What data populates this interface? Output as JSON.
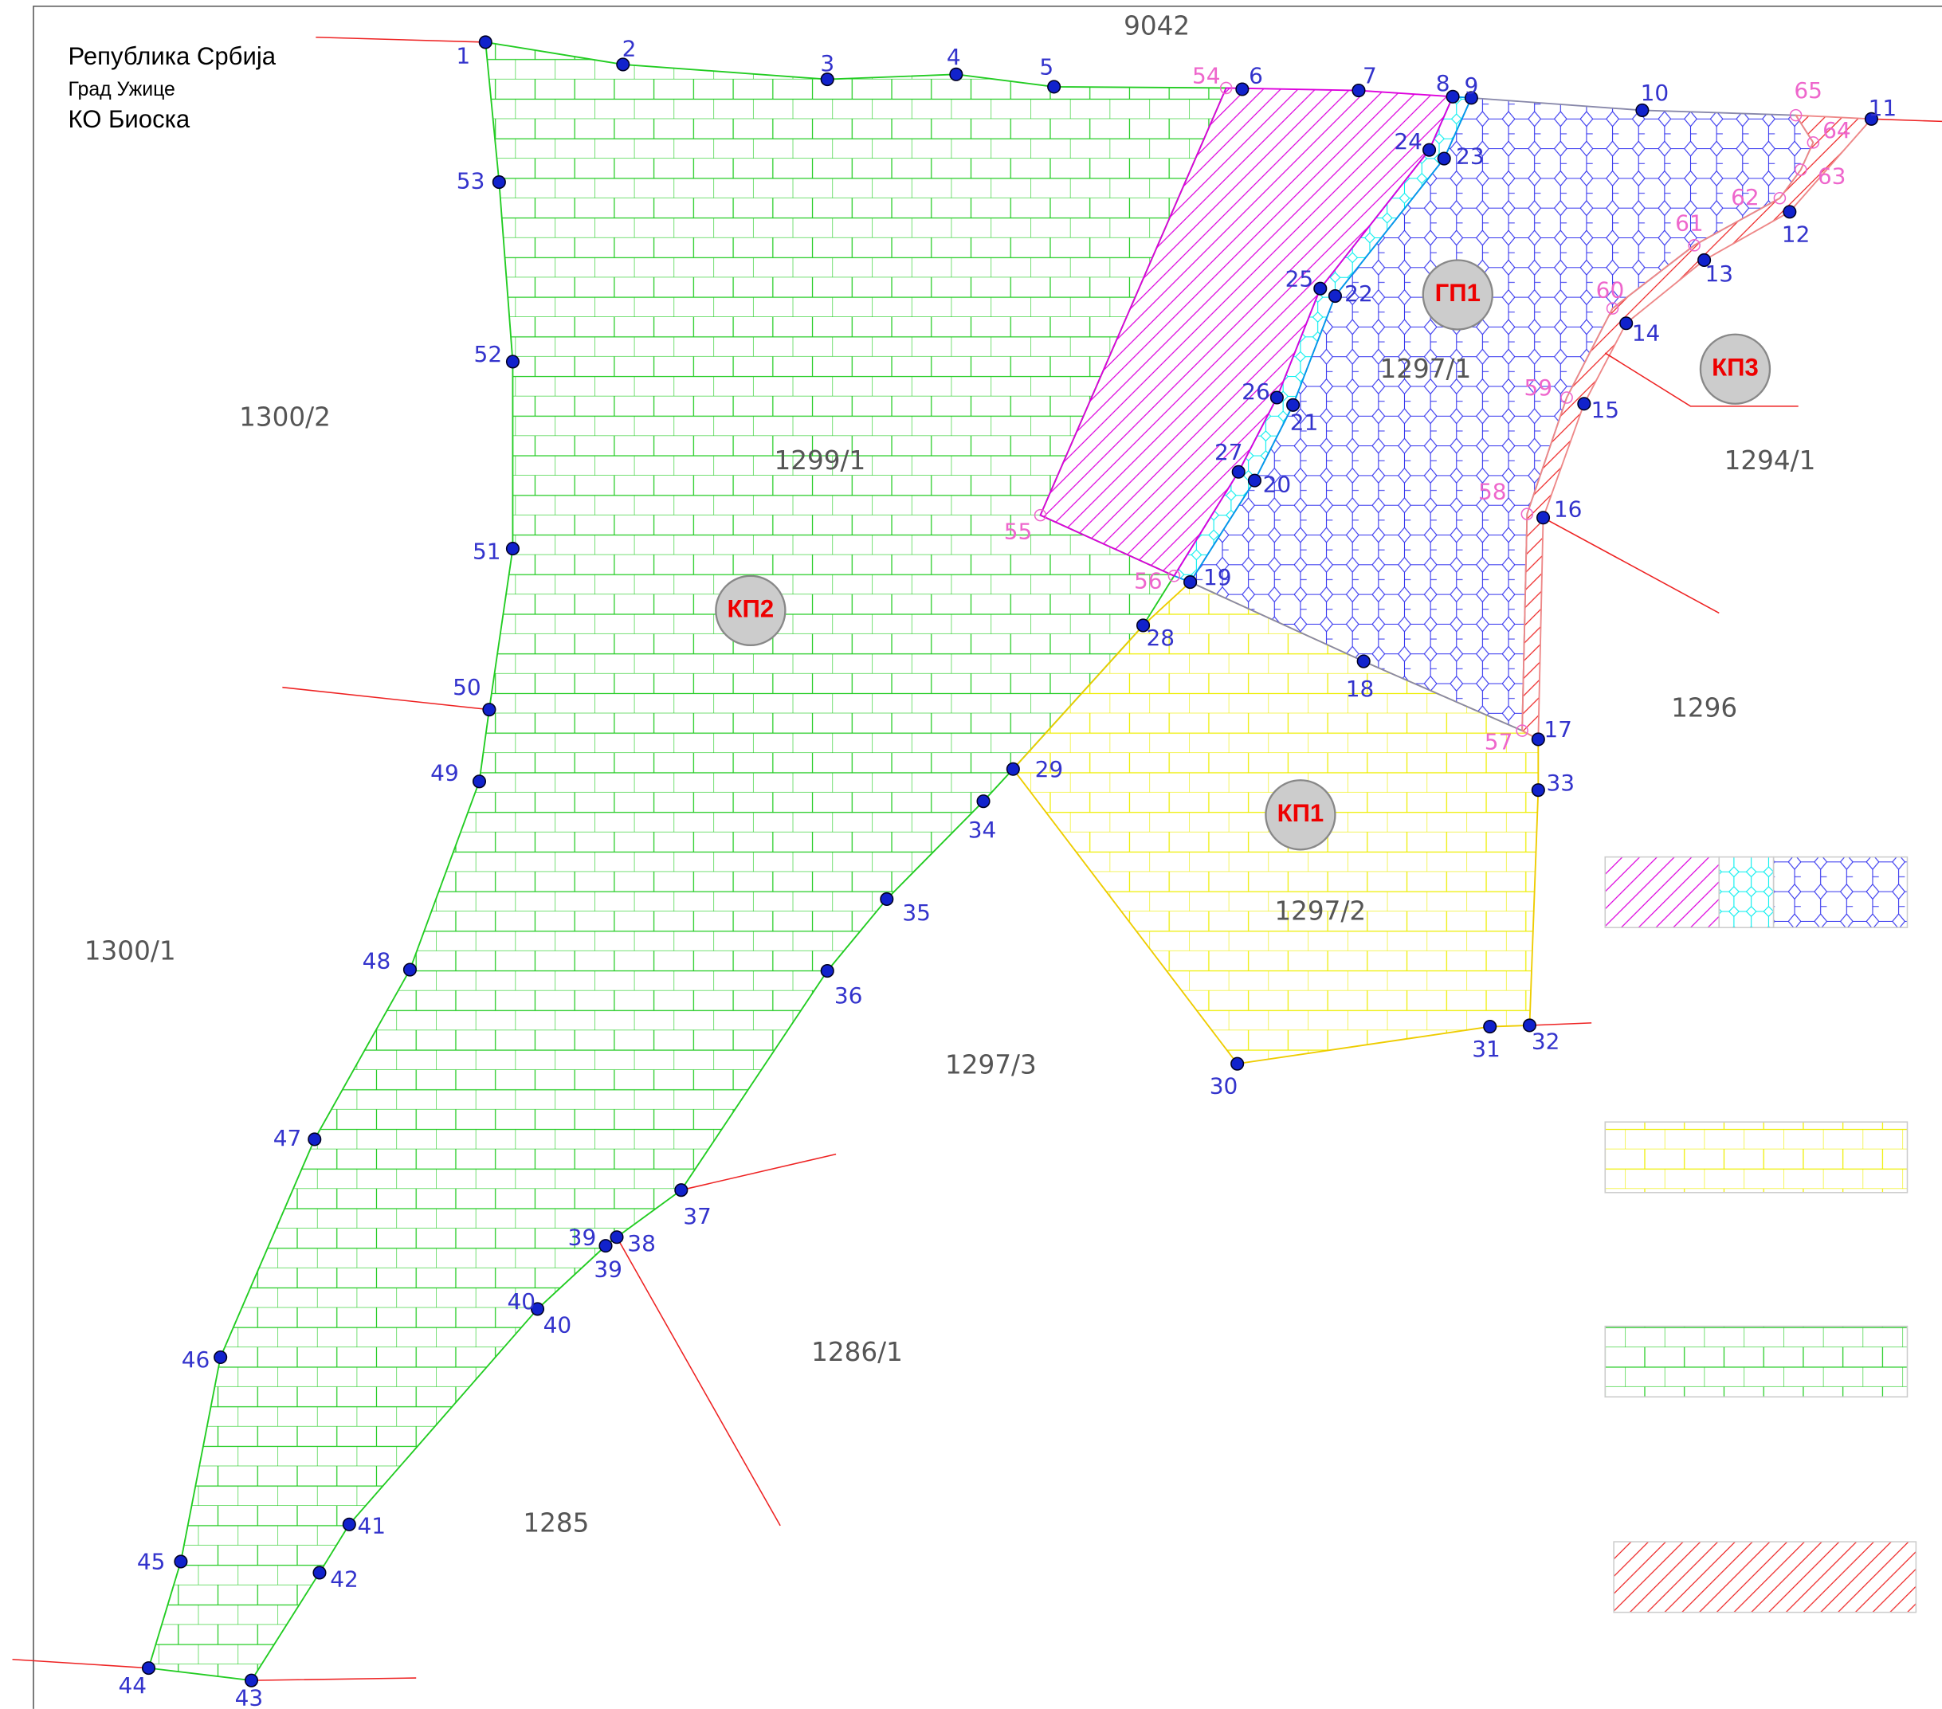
{
  "header": {
    "country": "Република Србија",
    "city": "Град Ужице",
    "cadastral_municipality": "КО Биоска"
  },
  "parcels": [
    "9042",
    "1300/2",
    "1299/1",
    "1297/1",
    "1294/1",
    "1296",
    "1300/1",
    "1297/2",
    "1297/3",
    "1286/1",
    "1285"
  ],
  "zones": [
    "КП1",
    "КП2",
    "КП3",
    "ГП1"
  ],
  "points": [
    "1",
    "2",
    "3",
    "4",
    "5",
    "6",
    "7",
    "8",
    "9",
    "10",
    "11",
    "12",
    "13",
    "14",
    "15",
    "16",
    "17",
    "18",
    "19",
    "20",
    "21",
    "22",
    "23",
    "24",
    "25",
    "26",
    "27",
    "28",
    "29",
    "30",
    "31",
    "32",
    "33",
    "34",
    "35",
    "36",
    "37",
    "38",
    "39",
    "40",
    "41",
    "42",
    "43",
    "44",
    "45",
    "46",
    "47",
    "48",
    "49",
    "50",
    "51",
    "52",
    "53",
    "54",
    "55",
    "56",
    "57",
    "58",
    "59",
    "60",
    "61",
    "62",
    "63",
    "64",
    "65",
    "39",
    "40"
  ]
}
